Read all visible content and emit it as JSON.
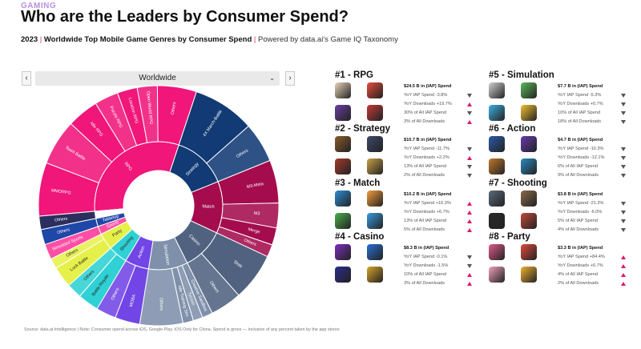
{
  "header": {
    "eyebrow": "GAMING",
    "title": "Who are the Leaders by Consumer Spend?",
    "subtitle_year": "2023",
    "subtitle_main": "Worldwide Top Mobile Game Genres by Consumer Spend",
    "subtitle_powered": "Powered by data.ai's Game IQ Taxonomy"
  },
  "region_selector": {
    "value": "Worldwide",
    "prev": "‹",
    "next": "›",
    "chevron": "⌄"
  },
  "chart_data": {
    "type": "sunburst",
    "inner_ring": [
      {
        "label": "RPG",
        "value": 24.5,
        "color": "#f0167a"
      },
      {
        "label": "Strategy",
        "value": 10.7,
        "color": "#123a74"
      },
      {
        "label": "Match",
        "value": 10.2,
        "color": "#a40c4e"
      },
      {
        "label": "Casino",
        "value": 8.3,
        "color": "#506280"
      },
      {
        "label": "Simulation",
        "value": 7.7,
        "color": "#7f90ab"
      },
      {
        "label": "Action",
        "value": 4.7,
        "color": "#7245e6"
      },
      {
        "label": "Shooting",
        "value": 3.8,
        "color": "#2fd1d4"
      },
      {
        "label": "Party",
        "value": 3.3,
        "color": "#e6f04a"
      },
      {
        "label": "Sports",
        "value": 1.6,
        "color": "#ff4fa5"
      },
      {
        "label": "Tabletop",
        "value": 1.6,
        "color": "#1f47a8"
      },
      {
        "label": "",
        "value": 1.4,
        "color": "#ffffff"
      }
    ],
    "outer_ring": [
      {
        "parent": "RPG",
        "label": "MMORPG",
        "value": 5.6
      },
      {
        "parent": "RPG",
        "label": "Team Battle",
        "value": 4.8
      },
      {
        "parent": "RPG",
        "label": "Idle RPG",
        "value": 3.3
      },
      {
        "parent": "RPG",
        "label": "Puzzle RPG",
        "value": 2.5
      },
      {
        "parent": "RPG",
        "label": "Location RPG",
        "value": 2.1
      },
      {
        "parent": "RPG",
        "label": "Open World RPG",
        "value": 2.1
      },
      {
        "parent": "RPG",
        "label": "Others",
        "value": 4.1
      },
      {
        "parent": "Strategy",
        "label": "4X March-Battle",
        "value": 6.5
      },
      {
        "parent": "Strategy",
        "label": "Others",
        "value": 4.2
      },
      {
        "parent": "Match",
        "label": "M3-Meta",
        "value": 4.5
      },
      {
        "parent": "Match",
        "label": "M3",
        "value": 2.6
      },
      {
        "parent": "Match",
        "label": "Merge",
        "value": 1.8
      },
      {
        "parent": "Match",
        "label": "Others",
        "value": 1.3
      },
      {
        "parent": "Casino",
        "label": "Slots",
        "value": 5.0
      },
      {
        "parent": "Casino",
        "label": "Others",
        "value": 3.3
      },
      {
        "parent": "Simulation",
        "label": "Creative Sandbox",
        "value": 1.1
      },
      {
        "parent": "Simulation",
        "label": "Tycoon",
        "value": 1.0
      },
      {
        "parent": "Simulation",
        "label": "Idle Training Sim",
        "value": 1.1
      },
      {
        "parent": "Simulation",
        "label": "Others",
        "value": 4.5
      },
      {
        "parent": "Action",
        "label": "MOBA",
        "value": 2.6
      },
      {
        "parent": "Action",
        "label": "Others",
        "value": 2.1
      },
      {
        "parent": "Shooting",
        "label": "Battle Royale",
        "value": 2.2
      },
      {
        "parent": "Shooting",
        "label": "Others",
        "value": 1.6
      },
      {
        "parent": "Party",
        "label": "Luck Battle",
        "value": 2.2
      },
      {
        "parent": "Party",
        "label": "Others",
        "value": 1.1
      },
      {
        "parent": "Sports",
        "label": "Simulated Sports",
        "value": 1.6
      },
      {
        "parent": "Tabletop",
        "label": "Others",
        "value": 1.6
      },
      {
        "parent": "",
        "label": "Others",
        "value": 1.4
      }
    ],
    "colors": {
      "RPG": "#f0167a",
      "Strategy": "#123a74",
      "Match": "#a40c4e",
      "Casino": "#506280",
      "Simulation": "#7f90ab",
      "Action": "#7245e6",
      "Shooting": "#2fd1d4",
      "Party": "#e6f04a",
      "Sports": "#ff4fa5",
      "Tabletop": "#1f47a8",
      "": "#2a2f5e"
    }
  },
  "genres": [
    {
      "title": "#1 - RPG",
      "metrics": [
        {
          "text": "$24.5 B in (IAP) Spend",
          "dir": "none"
        },
        {
          "text": "YoY IAP Spend -3.8%",
          "dir": "down"
        },
        {
          "text": "YoY Downloads +19.7%",
          "dir": "up"
        },
        {
          "text": "30% of All IAP Spend",
          "dir": "down"
        },
        {
          "text": "3% of All Downloads",
          "dir": "up"
        }
      ],
      "thumbs": [
        "#e9d3b8",
        "#e74c3c",
        "#6b3fa0",
        "#c23a3a"
      ]
    },
    {
      "title": "#2 - Strategy",
      "metrics": [
        {
          "text": "$10.7 B in (IAP) Spend",
          "dir": "none"
        },
        {
          "text": "YoY IAP Spend -11.7%",
          "dir": "down"
        },
        {
          "text": "YoY Downloads +2.2%",
          "dir": "up"
        },
        {
          "text": "13% of All IAP Spend",
          "dir": "down"
        },
        {
          "text": "2% of All Downloads",
          "dir": "down"
        }
      ],
      "thumbs": [
        "#8a5a2b",
        "#3d4a6b",
        "#a33b2a",
        "#c9a04a"
      ]
    },
    {
      "title": "#3 - Match",
      "metrics": [
        {
          "text": "$10.2 B in (IAP) Spend",
          "dir": "none"
        },
        {
          "text": "YoY IAP Spend +16.3%",
          "dir": "up"
        },
        {
          "text": "YoY Downloads +6.7%",
          "dir": "up"
        },
        {
          "text": "13% of All IAP Spend",
          "dir": "up"
        },
        {
          "text": "5% of All Downloads",
          "dir": "up"
        }
      ],
      "thumbs": [
        "#2e8dd6",
        "#f39c3c",
        "#4cae4c",
        "#3b9ae1"
      ]
    },
    {
      "title": "#4 - Casino",
      "metrics": [
        {
          "text": "$8.3 B in (IAP) Spend",
          "dir": "none"
        },
        {
          "text": "YoY IAP Spend -0.1%",
          "dir": "down"
        },
        {
          "text": "YoY Downloads -1.5%",
          "dir": "down"
        },
        {
          "text": "10% of All IAP Spend",
          "dir": "up"
        },
        {
          "text": "3% of All Downloads",
          "dir": "up"
        }
      ],
      "thumbs": [
        "#7b2fbe",
        "#2a6fd6",
        "#2c2c8c",
        "#d6a429"
      ]
    },
    {
      "title": "#5 - Simulation",
      "metrics": [
        {
          "text": "$7.7 B in (IAP) Spend",
          "dir": "none"
        },
        {
          "text": "YoY IAP Spend -5.3%",
          "dir": "down"
        },
        {
          "text": "YoY Downloads +0.7%",
          "dir": "down"
        },
        {
          "text": "10% of All IAP Spend",
          "dir": "down"
        },
        {
          "text": "18% of All Downloads",
          "dir": "down"
        }
      ],
      "thumbs": [
        "#d0d0d0",
        "#5cb85c",
        "#3cb0e0",
        "#f0c030"
      ]
    },
    {
      "title": "#6 - Action",
      "metrics": [
        {
          "text": "$4.7 B in (IAP) Spend",
          "dir": "none"
        },
        {
          "text": "YoY IAP Spend -10.3%",
          "dir": "down"
        },
        {
          "text": "YoY Downloads -12.1%",
          "dir": "down"
        },
        {
          "text": "6% of All IAP Spend",
          "dir": "down"
        },
        {
          "text": "9% of All Downloads",
          "dir": "down"
        }
      ],
      "thumbs": [
        "#2b5aa8",
        "#6a3ab0",
        "#c07a2a",
        "#2a8ac0"
      ]
    },
    {
      "title": "#7 - Shooting",
      "metrics": [
        {
          "text": "$3.8 B in (IAP) Spend",
          "dir": "none"
        },
        {
          "text": "YoY IAP Spend -21.3%",
          "dir": "down"
        },
        {
          "text": "YoY Downloads -6.0%",
          "dir": "down"
        },
        {
          "text": "5% of All IAP Spend",
          "dir": "down"
        },
        {
          "text": "4% of All Downloads",
          "dir": "down"
        }
      ],
      "thumbs": [
        "#5a6a7a",
        "#8a6a4a",
        "#2a2a2a",
        "#c04a3a"
      ]
    },
    {
      "title": "#8 - Party",
      "metrics": [
        {
          "text": "$3.3 B in (IAP) Spend",
          "dir": "none"
        },
        {
          "text": "YoY IAP Spend +84.4%",
          "dir": "up"
        },
        {
          "text": "YoY Downloads +6.7%",
          "dir": "up"
        },
        {
          "text": "4% of All IAP Spend",
          "dir": "up"
        },
        {
          "text": "2% of All Downloads",
          "dir": "up"
        }
      ],
      "thumbs": [
        "#e05a8a",
        "#e04a3a",
        "#f0a0c0",
        "#f0b030"
      ]
    }
  ],
  "footer": {
    "source": "Source: data.ai Intelligence | Note: Consumer spend across iOS, Google Play. iOS Only for China. Spend is gross — inclusive of any percent taken by the app stores"
  }
}
